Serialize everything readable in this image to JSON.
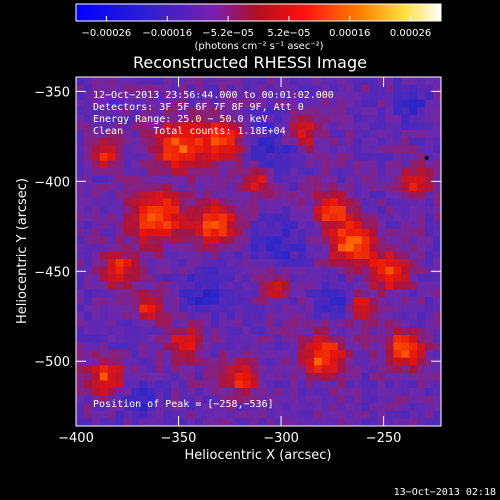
{
  "colorbar": {
    "ticks": [
      "−0.00026",
      "−0.00016",
      "−5.2e−05",
      "5.2e−05",
      "0.00016",
      "0.00026"
    ],
    "unit_label": "(photons cm⁻² s⁻¹ asec⁻²)"
  },
  "chart_data": {
    "type": "heatmap",
    "title": "Reconstructed RHESSI Image",
    "xlabel": "Heliocentric X (arcsec)",
    "ylabel": "Heliocentric Y (arcsec)",
    "xlim": [
      -400,
      -222
    ],
    "ylim": [
      -536,
      -342
    ],
    "x_ticks": [
      "−400",
      "−350",
      "−300",
      "−250"
    ],
    "y_ticks": [
      "−350",
      "−400",
      "−450",
      "−500"
    ],
    "clim": [
      -0.00026,
      0.00026
    ],
    "colormap": "RHESSI rainbow-heat (blue → purple → red → orange → yellow → white)",
    "info_lines": [
      "12−Oct−2013 23:56:44.000 to 00:01:02.000",
      "Detectors: 3F 5F 6F 7F 8F 9F, Att 0",
      "Energy Range: 25.0 − 50.0 keV",
      "Clean     Total counts: 1.18E+04"
    ],
    "peak_label": "Position of Peak = [−258,−536]",
    "peak_position": [
      -258,
      -536
    ],
    "marker": {
      "x": -229,
      "y": -387
    }
  },
  "footer": {
    "timestamp": "13−Oct−2013 02:18"
  }
}
